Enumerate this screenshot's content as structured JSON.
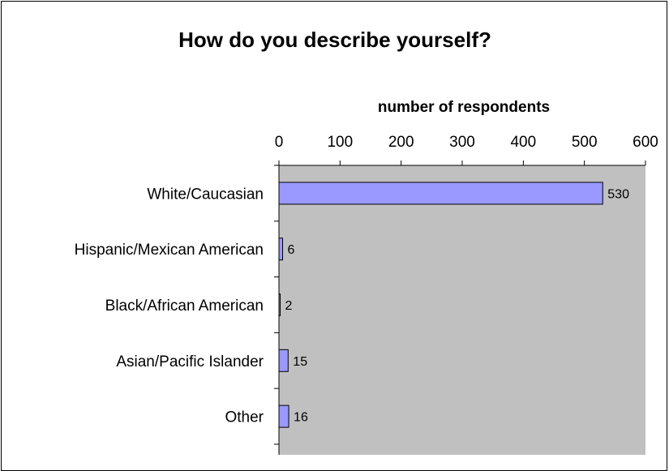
{
  "chart_data": {
    "type": "bar",
    "orientation": "horizontal",
    "title": "How do you describe yourself?",
    "xlabel": "number of respondents",
    "ylabel": "",
    "xlim": [
      0,
      600
    ],
    "ticks": [
      0,
      100,
      200,
      300,
      400,
      500,
      600
    ],
    "tick_labels": [
      "0",
      "100",
      "200",
      "300",
      "400",
      "500",
      "600"
    ],
    "categories": [
      "White/Caucasian",
      "Hispanic/Mexican American",
      "Black/African American",
      "Asian/Pacific Islander",
      "Other"
    ],
    "values": [
      530,
      6,
      2,
      15,
      16
    ],
    "data_labels": [
      "530",
      "6",
      "2",
      "15",
      "16"
    ],
    "axis_position": "top",
    "grid": false,
    "legend": "none",
    "colors": {
      "bar_fill": "#9999ff",
      "bar_stroke": "#000000",
      "plot_background": "#c0c0c0"
    }
  }
}
